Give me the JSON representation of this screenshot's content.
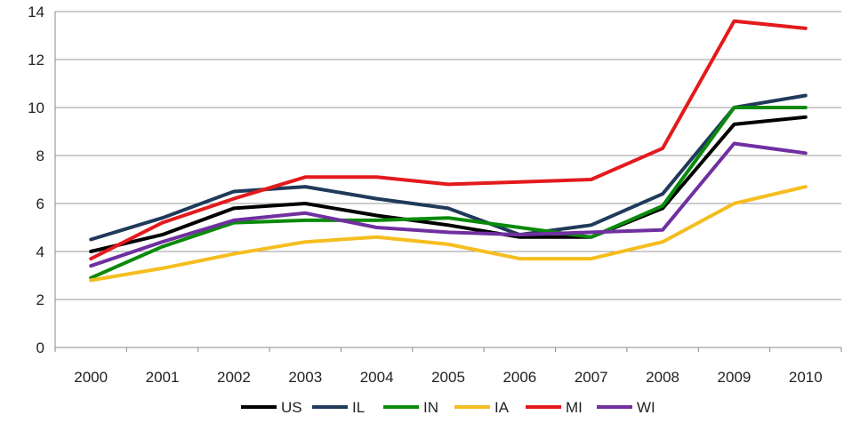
{
  "chart_data": {
    "type": "line",
    "title": "",
    "xlabel": "",
    "ylabel": "",
    "categories": [
      "2000",
      "2001",
      "2002",
      "2003",
      "2004",
      "2005",
      "2006",
      "2007",
      "2008",
      "2009",
      "2010"
    ],
    "ylim": [
      0,
      14
    ],
    "yticks": [
      0,
      2,
      4,
      6,
      8,
      10,
      12,
      14
    ],
    "grid": "horizontal",
    "legend": "bottom",
    "series": [
      {
        "name": "US",
        "color": "#000000",
        "values": [
          4.0,
          4.7,
          5.8,
          6.0,
          5.5,
          5.1,
          4.6,
          4.6,
          5.8,
          9.3,
          9.6
        ]
      },
      {
        "name": "IL",
        "color": "#1f3a5a",
        "values": [
          4.5,
          5.4,
          6.5,
          6.7,
          6.2,
          5.8,
          4.7,
          5.1,
          6.4,
          10.0,
          10.5
        ]
      },
      {
        "name": "IN",
        "color": "#0a8a0a",
        "values": [
          2.9,
          4.2,
          5.2,
          5.3,
          5.3,
          5.4,
          5.0,
          4.6,
          5.9,
          10.0,
          10.0
        ]
      },
      {
        "name": "IA",
        "color": "#f5bd1f",
        "values": [
          2.8,
          3.3,
          3.9,
          4.4,
          4.6,
          4.3,
          3.7,
          3.7,
          4.4,
          6.0,
          6.7
        ]
      },
      {
        "name": "MI",
        "color": "#e31a1c",
        "values": [
          3.7,
          5.2,
          6.2,
          7.1,
          7.1,
          6.8,
          6.9,
          7.0,
          8.3,
          13.6,
          13.3
        ]
      },
      {
        "name": "WI",
        "color": "#7030a0",
        "values": [
          3.4,
          4.4,
          5.3,
          5.6,
          5.0,
          4.8,
          4.7,
          4.8,
          4.9,
          8.5,
          8.1
        ]
      }
    ]
  }
}
